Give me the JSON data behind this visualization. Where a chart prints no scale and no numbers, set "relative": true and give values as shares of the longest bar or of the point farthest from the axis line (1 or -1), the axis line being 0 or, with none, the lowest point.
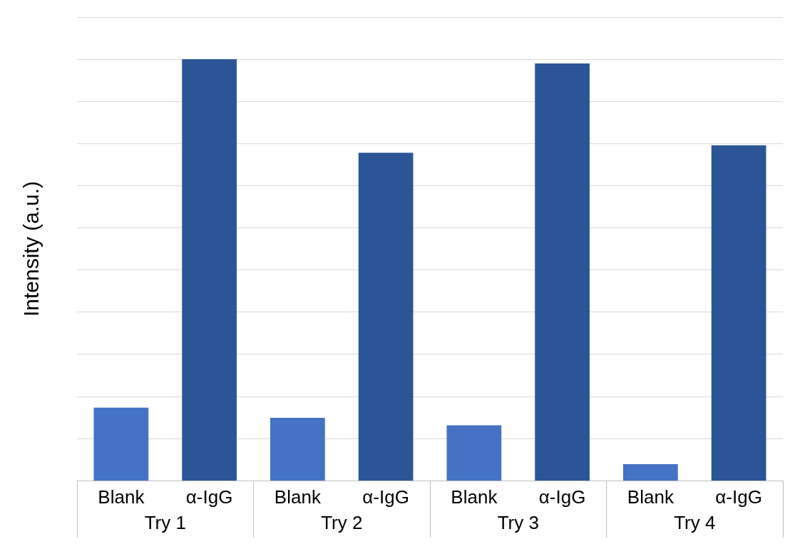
{
  "chart_data": {
    "type": "bar",
    "ylabel": "Intensity (a.u.)",
    "relative": true,
    "grid": "y",
    "categories": [
      "Blank",
      "α-IgG",
      "Blank",
      "α-IgG",
      "Blank",
      "α-IgG",
      "Blank",
      "α-IgG"
    ],
    "values": [
      0.173,
      1,
      0.149,
      0.778,
      0.131,
      0.99,
      0.039,
      0.796
    ],
    "colors": [
      "#4472c4",
      "#2b5597",
      "#4472c4",
      "#2b5597",
      "#4472c4",
      "#2b5597",
      "#4472c4",
      "#2b5597"
    ],
    "annotations": [
      "Try 1",
      "Try 2",
      "Try 3",
      "Try 4"
    ]
  }
}
